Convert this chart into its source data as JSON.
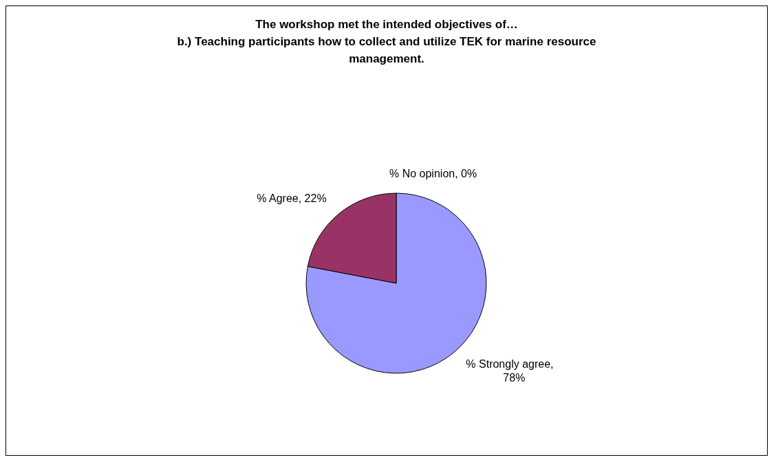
{
  "chart_data": {
    "type": "pie",
    "title": "The workshop met the intended objectives of…",
    "subtitle": "b.) Teaching participants how to collect and utilize TEK for marine resource management.",
    "categories": [
      "% Strongly agree",
      "% Agree",
      "% No opinion"
    ],
    "values": [
      78,
      22,
      0
    ],
    "value_labels": [
      ", 78%",
      ", 22%",
      ", 0%"
    ],
    "colors": [
      "#9999ff",
      "#993366",
      "#ffffcc"
    ]
  }
}
